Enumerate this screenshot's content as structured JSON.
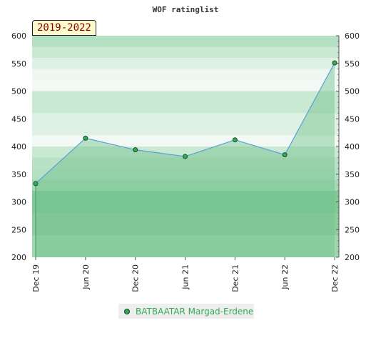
{
  "chart_data": {
    "type": "area",
    "title": "WOF ratinglist",
    "period_badge": "2019-2022",
    "categories": [
      "Dec 19",
      "Jun 20",
      "Dec 20",
      "Jun 21",
      "Dec 21",
      "Jun 22",
      "Dec 22"
    ],
    "series": [
      {
        "name": "BATBAATAR Margad-Erdene",
        "values": [
          333,
          415,
          394,
          382,
          412,
          385,
          551
        ]
      }
    ],
    "y_ticks": [
      200,
      250,
      300,
      350,
      400,
      450,
      500,
      550,
      600
    ],
    "ylim": [
      200,
      600
    ],
    "grid": true,
    "legend_position": "bottom",
    "colors": {
      "area": "#6fc08a",
      "line": "#5aa0d8",
      "marker": "#33aa55",
      "legend_text": "#33aa55"
    }
  }
}
